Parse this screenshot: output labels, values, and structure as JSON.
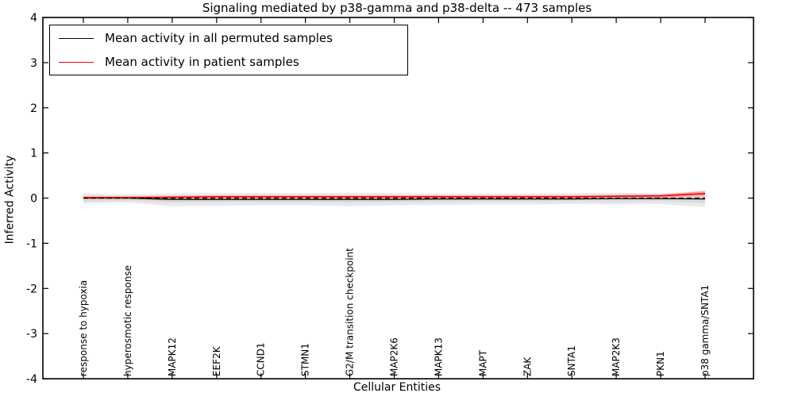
{
  "figure": {
    "background": "#ffffff"
  },
  "chart_data": {
    "type": "line",
    "title": "Signaling mediated by p38-gamma and p38-delta -- 473 samples",
    "xlabel": "Cellular Entities",
    "ylabel": "Inferred Activity",
    "ylim": [
      -4,
      4
    ],
    "yticks": [
      -4,
      -3,
      -2,
      -1,
      0,
      1,
      2,
      3,
      4
    ],
    "grid": false,
    "legend_position": "upper left",
    "categories": [
      "response to hypoxia",
      "hyperosmotic response",
      "MAPK12",
      "EEF2K",
      "CCND1",
      "STMN1",
      "G2/M transition checkpoint",
      "MAP2K6",
      "MAPK13",
      "MAPT",
      "ZAK",
      "SNTA1",
      "MAP2K3",
      "PKN1",
      "p38 gamma/SNTA1"
    ],
    "series": [
      {
        "name": "Mean activity in all permuted samples",
        "color": "#000000",
        "line_style": "solid",
        "values": [
          0.0,
          0.0,
          -0.03,
          -0.03,
          -0.03,
          -0.03,
          -0.03,
          -0.03,
          -0.02,
          -0.02,
          -0.02,
          -0.02,
          -0.01,
          -0.01,
          -0.02
        ]
      },
      {
        "name": "Mean activity in patient samples",
        "color": "#ff0000",
        "line_style": "solid",
        "values": [
          0.01,
          0.01,
          0.02,
          0.03,
          0.03,
          0.03,
          0.03,
          0.03,
          0.03,
          0.03,
          0.03,
          0.03,
          0.04,
          0.05,
          0.1
        ]
      }
    ],
    "reference_line": {
      "value": 0,
      "color": "#000000",
      "line_style": "dashed"
    },
    "bands": [
      {
        "name": "permuted-range-outer",
        "color": "#e9e9e9",
        "upper": [
          0.1,
          0.08,
          0.1,
          0.11,
          0.11,
          0.11,
          0.12,
          0.11,
          0.1,
          0.1,
          0.1,
          0.11,
          0.12,
          0.1,
          0.12
        ],
        "lower": [
          -0.12,
          -0.1,
          -0.18,
          -0.17,
          -0.16,
          -0.16,
          -0.18,
          -0.16,
          -0.15,
          -0.14,
          -0.14,
          -0.13,
          -0.14,
          -0.13,
          -0.2
        ]
      },
      {
        "name": "permuted-range-inner",
        "color": "#dadada",
        "upper": [
          0.05,
          0.04,
          0.05,
          0.06,
          0.06,
          0.06,
          0.06,
          0.06,
          0.05,
          0.05,
          0.05,
          0.06,
          0.06,
          0.05,
          0.06
        ],
        "lower": [
          -0.07,
          -0.06,
          -0.1,
          -0.09,
          -0.09,
          -0.09,
          -0.1,
          -0.09,
          -0.08,
          -0.08,
          -0.08,
          -0.07,
          -0.08,
          -0.07,
          -0.11
        ]
      },
      {
        "name": "patient-range",
        "color": "#f5a9a9",
        "upper": [
          0.04,
          0.04,
          0.05,
          0.06,
          0.06,
          0.06,
          0.06,
          0.06,
          0.06,
          0.06,
          0.06,
          0.06,
          0.07,
          0.08,
          0.16
        ],
        "lower": [
          -0.02,
          -0.02,
          -0.01,
          0.0,
          0.0,
          0.0,
          0.0,
          0.0,
          0.0,
          0.0,
          0.0,
          0.0,
          0.01,
          0.01,
          0.04
        ]
      }
    ]
  }
}
